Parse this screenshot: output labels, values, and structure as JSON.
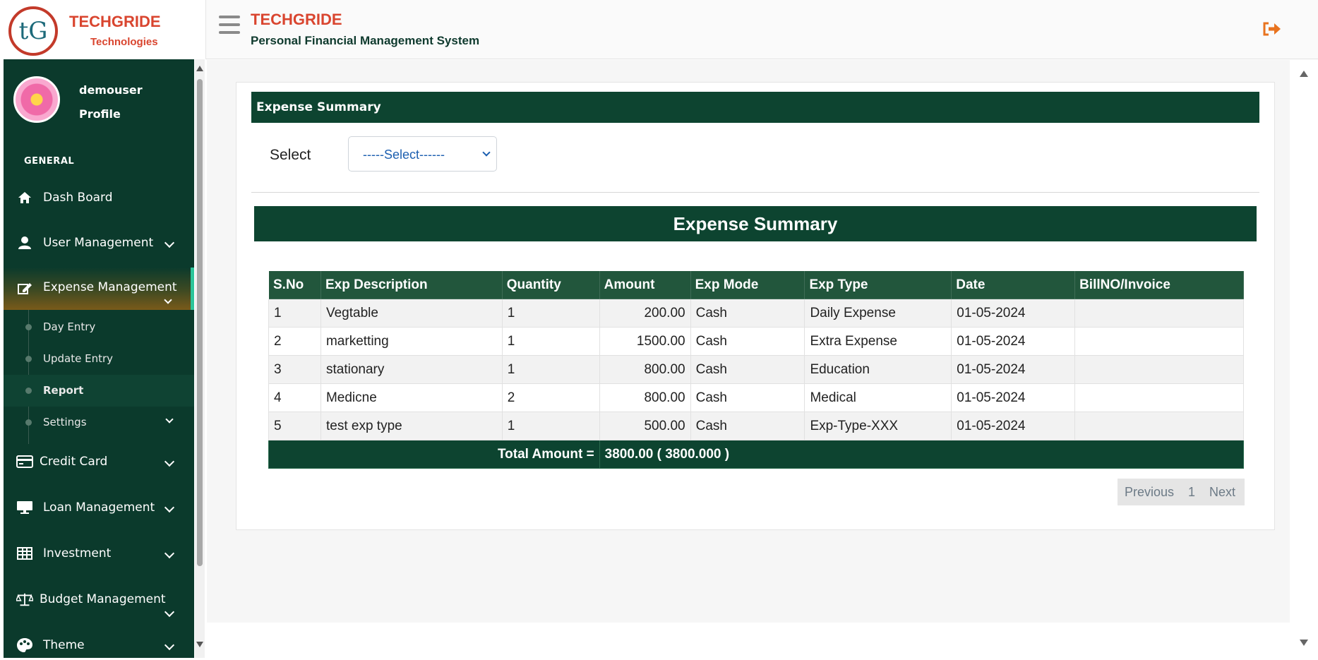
{
  "brand": {
    "name": "TECHGRIDE",
    "sub": "Technologies",
    "logo_text": "tG"
  },
  "header": {
    "title": "TECHGRIDE",
    "subtitle": "Personal Financial Management System"
  },
  "user": {
    "name": "demouser",
    "profile": "Profile"
  },
  "sidebar": {
    "section": "GENERAL",
    "items": [
      {
        "label": "Dash Board",
        "icon": "home-icon"
      },
      {
        "label": "User Management",
        "icon": "user-icon"
      },
      {
        "label": "Expense Management",
        "icon": "edit-icon"
      },
      {
        "label": "Credit Card",
        "icon": "credit-card-icon"
      },
      {
        "label": "Loan Management",
        "icon": "monitor-icon"
      },
      {
        "label": "Investment",
        "icon": "table-icon"
      },
      {
        "label": "Budget Management",
        "icon": "scale-icon"
      },
      {
        "label": "Theme",
        "icon": "palette-icon"
      }
    ],
    "sub_items": [
      "Day Entry",
      "Update Entry",
      "Report",
      "Settings"
    ]
  },
  "card": {
    "header": "Expense Summary",
    "select_label": "Select",
    "select_value": "-----Select------",
    "summary_title": "Expense Summary"
  },
  "table": {
    "columns": [
      "S.No",
      "Exp Description",
      "Quantity",
      "Amount",
      "Exp Mode",
      "Exp Type",
      "Date",
      "BillNO/Invoice"
    ],
    "rows": [
      [
        "1",
        "Vegtable",
        "1",
        "200.00",
        "Cash",
        "Daily Expense",
        "01-05-2024",
        ""
      ],
      [
        "2",
        "marketting",
        "1",
        "1500.00",
        "Cash",
        "Extra Expense",
        "01-05-2024",
        ""
      ],
      [
        "3",
        "stationary",
        "1",
        "800.00",
        "Cash",
        "Education",
        "01-05-2024",
        ""
      ],
      [
        "4",
        "Medicne",
        "2",
        "800.00",
        "Cash",
        "Medical",
        "01-05-2024",
        ""
      ],
      [
        "5",
        "test exp type",
        "1",
        "500.00",
        "Cash",
        "Exp-Type-XXX",
        "01-05-2024",
        ""
      ]
    ],
    "total_label": "Total Amount =",
    "total_value": "3800.00 ( 3800.000 )"
  },
  "pager": {
    "previous": "Previous",
    "page": "1",
    "next": "Next"
  },
  "colors": {
    "brand": "#d9452f",
    "sidebar": "#0b3a2c",
    "header_green": "#0d4430",
    "accent": "#2cc59a"
  }
}
